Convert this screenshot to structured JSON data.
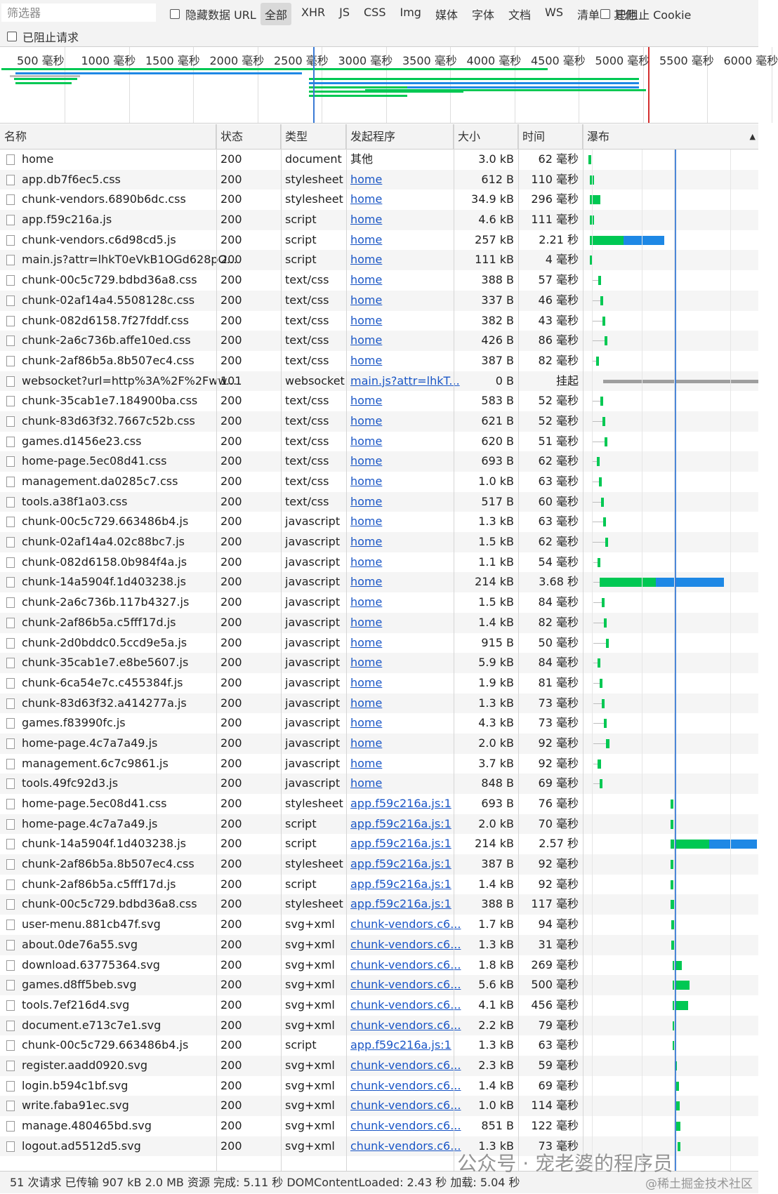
{
  "toolbar": {
    "filter_placeholder": "筛选器",
    "hide_data_url": "隐藏数据 URL",
    "types": [
      "全部",
      "XHR",
      "JS",
      "CSS",
      "Img",
      "媒体",
      "字体",
      "文档",
      "WS",
      "清单",
      "其他"
    ],
    "active_type": "全部",
    "blocked_cookies": "已阻止 Cookie",
    "blocked_requests": "已阻止请求"
  },
  "overview": {
    "ticks": [
      "500 毫秒",
      "1000 毫秒",
      "1500 毫秒",
      "2000 毫秒",
      "2500 毫秒",
      "3000 毫秒",
      "3500 毫秒",
      "4000 毫秒",
      "4500 毫秒",
      "5000 毫秒",
      "5500 毫秒",
      "6000 毫秒"
    ]
  },
  "columns": {
    "name": "名称",
    "status": "状态",
    "type": "类型",
    "initiator": "发起程序",
    "size": "大小",
    "time": "时间",
    "waterfall": "瀑布"
  },
  "rows": [
    {
      "name": "home",
      "status": "200",
      "type": "document",
      "initiator": "其他",
      "size": "3.0 kB",
      "time": "62 毫秒"
    },
    {
      "name": "app.db7f6ec5.css",
      "status": "200",
      "type": "stylesheet",
      "initiator": "home",
      "size": "612 B",
      "time": "110 毫秒"
    },
    {
      "name": "chunk-vendors.6890b6dc.css",
      "status": "200",
      "type": "stylesheet",
      "initiator": "home",
      "size": "34.9 kB",
      "time": "296 毫秒"
    },
    {
      "name": "app.f59c216a.js",
      "status": "200",
      "type": "script",
      "initiator": "home",
      "size": "4.6 kB",
      "time": "111 毫秒"
    },
    {
      "name": "chunk-vendors.c6d98cd5.js",
      "status": "200",
      "type": "script",
      "initiator": "home",
      "size": "257 kB",
      "time": "2.21 秒"
    },
    {
      "name": "main.js?attr=lhkT0eVkB1OGd628pO...",
      "status": "200",
      "type": "script",
      "initiator": "home",
      "size": "111 kB",
      "time": "4 毫秒"
    },
    {
      "name": "chunk-00c5c729.bdbd36a8.css",
      "status": "200",
      "type": "text/css",
      "initiator": "home",
      "size": "388 B",
      "time": "57 毫秒"
    },
    {
      "name": "chunk-02af14a4.5508128c.css",
      "status": "200",
      "type": "text/css",
      "initiator": "home",
      "size": "337 B",
      "time": "46 毫秒"
    },
    {
      "name": "chunk-082d6158.7f27fddf.css",
      "status": "200",
      "type": "text/css",
      "initiator": "home",
      "size": "382 B",
      "time": "43 毫秒"
    },
    {
      "name": "chunk-2a6c736b.affe10ed.css",
      "status": "200",
      "type": "text/css",
      "initiator": "home",
      "size": "426 B",
      "time": "86 毫秒"
    },
    {
      "name": "chunk-2af86b5a.8b507ec4.css",
      "status": "200",
      "type": "text/css",
      "initiator": "home",
      "size": "387 B",
      "time": "82 毫秒"
    },
    {
      "name": "websocket?url=http%3A%2F%2Fww...",
      "status": "101",
      "type": "websocket",
      "initiator": "main.js?attr=lhkT...",
      "size": "0 B",
      "time": "挂起"
    },
    {
      "name": "chunk-35cab1e7.184900ba.css",
      "status": "200",
      "type": "text/css",
      "initiator": "home",
      "size": "583 B",
      "time": "52 毫秒"
    },
    {
      "name": "chunk-83d63f32.7667c52b.css",
      "status": "200",
      "type": "text/css",
      "initiator": "home",
      "size": "621 B",
      "time": "52 毫秒"
    },
    {
      "name": "games.d1456e23.css",
      "status": "200",
      "type": "text/css",
      "initiator": "home",
      "size": "620 B",
      "time": "51 毫秒"
    },
    {
      "name": "home-page.5ec08d41.css",
      "status": "200",
      "type": "text/css",
      "initiator": "home",
      "size": "693 B",
      "time": "62 毫秒"
    },
    {
      "name": "management.da0285c7.css",
      "status": "200",
      "type": "text/css",
      "initiator": "home",
      "size": "1.0 kB",
      "time": "63 毫秒"
    },
    {
      "name": "tools.a38f1a03.css",
      "status": "200",
      "type": "text/css",
      "initiator": "home",
      "size": "517 B",
      "time": "60 毫秒"
    },
    {
      "name": "chunk-00c5c729.663486b4.js",
      "status": "200",
      "type": "javascript",
      "initiator": "home",
      "size": "1.3 kB",
      "time": "63 毫秒"
    },
    {
      "name": "chunk-02af14a4.02c88bc7.js",
      "status": "200",
      "type": "javascript",
      "initiator": "home",
      "size": "1.5 kB",
      "time": "62 毫秒"
    },
    {
      "name": "chunk-082d6158.0b984f4a.js",
      "status": "200",
      "type": "javascript",
      "initiator": "home",
      "size": "1.1 kB",
      "time": "54 毫秒"
    },
    {
      "name": "chunk-14a5904f.1d403238.js",
      "status": "200",
      "type": "javascript",
      "initiator": "home",
      "size": "214 kB",
      "time": "3.68 秒"
    },
    {
      "name": "chunk-2a6c736b.117b4327.js",
      "status": "200",
      "type": "javascript",
      "initiator": "home",
      "size": "1.5 kB",
      "time": "84 毫秒"
    },
    {
      "name": "chunk-2af86b5a.c5fff17d.js",
      "status": "200",
      "type": "javascript",
      "initiator": "home",
      "size": "1.4 kB",
      "time": "82 毫秒"
    },
    {
      "name": "chunk-2d0bddc0.5ccd9e5a.js",
      "status": "200",
      "type": "javascript",
      "initiator": "home",
      "size": "915 B",
      "time": "50 毫秒"
    },
    {
      "name": "chunk-35cab1e7.e8be5607.js",
      "status": "200",
      "type": "javascript",
      "initiator": "home",
      "size": "5.9 kB",
      "time": "84 毫秒"
    },
    {
      "name": "chunk-6ca54e7c.c455384f.js",
      "status": "200",
      "type": "javascript",
      "initiator": "home",
      "size": "1.9 kB",
      "time": "81 毫秒"
    },
    {
      "name": "chunk-83d63f32.a414277a.js",
      "status": "200",
      "type": "javascript",
      "initiator": "home",
      "size": "1.3 kB",
      "time": "73 毫秒"
    },
    {
      "name": "games.f83990fc.js",
      "status": "200",
      "type": "javascript",
      "initiator": "home",
      "size": "4.3 kB",
      "time": "73 毫秒"
    },
    {
      "name": "home-page.4c7a7a49.js",
      "status": "200",
      "type": "javascript",
      "initiator": "home",
      "size": "2.0 kB",
      "time": "92 毫秒"
    },
    {
      "name": "management.6c7c9861.js",
      "status": "200",
      "type": "javascript",
      "initiator": "home",
      "size": "3.7 kB",
      "time": "92 毫秒"
    },
    {
      "name": "tools.49fc92d3.js",
      "status": "200",
      "type": "javascript",
      "initiator": "home",
      "size": "848 B",
      "time": "69 毫秒"
    },
    {
      "name": "home-page.5ec08d41.css",
      "status": "200",
      "type": "stylesheet",
      "initiator": "app.f59c216a.js:1",
      "size": "693 B",
      "time": "76 毫秒"
    },
    {
      "name": "home-page.4c7a7a49.js",
      "status": "200",
      "type": "script",
      "initiator": "app.f59c216a.js:1",
      "size": "2.0 kB",
      "time": "70 毫秒"
    },
    {
      "name": "chunk-14a5904f.1d403238.js",
      "status": "200",
      "type": "script",
      "initiator": "app.f59c216a.js:1",
      "size": "214 kB",
      "time": "2.57 秒"
    },
    {
      "name": "chunk-2af86b5a.8b507ec4.css",
      "status": "200",
      "type": "stylesheet",
      "initiator": "app.f59c216a.js:1",
      "size": "387 B",
      "time": "92 毫秒"
    },
    {
      "name": "chunk-2af86b5a.c5fff17d.js",
      "status": "200",
      "type": "script",
      "initiator": "app.f59c216a.js:1",
      "size": "1.4 kB",
      "time": "92 毫秒"
    },
    {
      "name": "chunk-00c5c729.bdbd36a8.css",
      "status": "200",
      "type": "stylesheet",
      "initiator": "app.f59c216a.js:1",
      "size": "388 B",
      "time": "117 毫秒"
    },
    {
      "name": "user-menu.881cb47f.svg",
      "status": "200",
      "type": "svg+xml",
      "initiator": "chunk-vendors.c6...",
      "size": "1.7 kB",
      "time": "94 毫秒"
    },
    {
      "name": "about.0de76a55.svg",
      "status": "200",
      "type": "svg+xml",
      "initiator": "chunk-vendors.c6...",
      "size": "1.3 kB",
      "time": "31 毫秒"
    },
    {
      "name": "download.63775364.svg",
      "status": "200",
      "type": "svg+xml",
      "initiator": "chunk-vendors.c6...",
      "size": "1.8 kB",
      "time": "269 毫秒"
    },
    {
      "name": "games.d8ff5beb.svg",
      "status": "200",
      "type": "svg+xml",
      "initiator": "chunk-vendors.c6...",
      "size": "5.6 kB",
      "time": "500 毫秒"
    },
    {
      "name": "tools.7ef216d4.svg",
      "status": "200",
      "type": "svg+xml",
      "initiator": "chunk-vendors.c6...",
      "size": "4.1 kB",
      "time": "456 毫秒"
    },
    {
      "name": "document.e713c7e1.svg",
      "status": "200",
      "type": "svg+xml",
      "initiator": "chunk-vendors.c6...",
      "size": "2.2 kB",
      "time": "79 毫秒"
    },
    {
      "name": "chunk-00c5c729.663486b4.js",
      "status": "200",
      "type": "script",
      "initiator": "app.f59c216a.js:1",
      "size": "1.3 kB",
      "time": "63 毫秒"
    },
    {
      "name": "register.aadd0920.svg",
      "status": "200",
      "type": "svg+xml",
      "initiator": "chunk-vendors.c6...",
      "size": "2.3 kB",
      "time": "59 毫秒"
    },
    {
      "name": "login.b594c1bf.svg",
      "status": "200",
      "type": "svg+xml",
      "initiator": "chunk-vendors.c6...",
      "size": "1.4 kB",
      "time": "69 毫秒"
    },
    {
      "name": "write.faba91ec.svg",
      "status": "200",
      "type": "svg+xml",
      "initiator": "chunk-vendors.c6...",
      "size": "1.0 kB",
      "time": "114 毫秒"
    },
    {
      "name": "manage.480465bd.svg",
      "status": "200",
      "type": "svg+xml",
      "initiator": "chunk-vendors.c6...",
      "size": "851 B",
      "time": "122 毫秒"
    },
    {
      "name": "logout.ad5512d5.svg",
      "status": "200",
      "type": "svg+xml",
      "initiator": "chunk-vendors.c6...",
      "size": "1.3 kB",
      "time": "73 毫秒"
    }
  ],
  "status_bar": {
    "text": "51 次请求  已传输 907 kB  2.0 MB 资源  完成: 5.11 秒  DOMContentLoaded: 2.43 秒  加载: 5.04 秒"
  },
  "watermark": "公众号 · 宠老婆的程序员",
  "watermark2": "@稀土掘金技术社区",
  "colors": {
    "waiting": "#00c853",
    "download": "#1e88e5",
    "stalled": "#bdbdbd",
    "pending": "#9e9e9e",
    "dom_content_loaded": "#3a7bd5",
    "load": "#d32f2f"
  }
}
